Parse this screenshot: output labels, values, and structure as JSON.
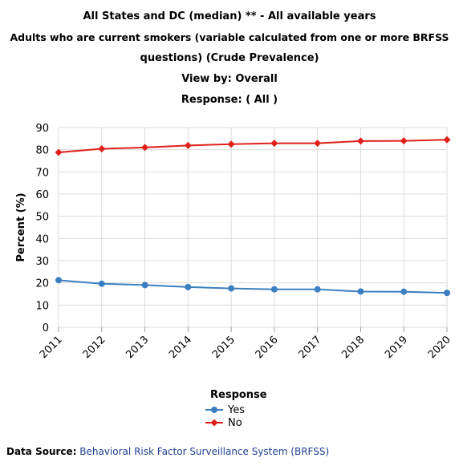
{
  "titles": {
    "line1": "All States and DC (median) ** - All available years",
    "line2": "Adults who are current smokers (variable calculated from one or more BRFSS",
    "line3": "questions) (Crude Prevalence)",
    "line4": "View by: Overall",
    "line5": "Response: ( All )"
  },
  "legend": {
    "title": "Response"
  },
  "footer": {
    "label": "Data Source:",
    "link": "Behavioral Risk Factor Surveillance System (BRFSS)"
  },
  "chart_data": {
    "type": "line",
    "ylabel": "Percent (%)",
    "xlabel": "",
    "ylim": [
      0,
      90
    ],
    "yticks": [
      0,
      10,
      20,
      30,
      40,
      50,
      60,
      70,
      80,
      90
    ],
    "categories": [
      "2011",
      "2012",
      "2013",
      "2014",
      "2015",
      "2016",
      "2017",
      "2018",
      "2019",
      "2020"
    ],
    "grid": true,
    "legend_position": "bottom",
    "series": [
      {
        "name": "Yes",
        "color": "#3c7fc1",
        "marker": "circle",
        "values": [
          21.2,
          19.6,
          19.0,
          18.1,
          17.5,
          17.1,
          17.1,
          16.1,
          16.0,
          15.5
        ]
      },
      {
        "name": "No",
        "color": "#e0201b",
        "marker": "diamond",
        "values": [
          78.8,
          80.4,
          81.0,
          81.9,
          82.5,
          82.9,
          82.9,
          83.9,
          84.0,
          84.5
        ]
      }
    ]
  }
}
